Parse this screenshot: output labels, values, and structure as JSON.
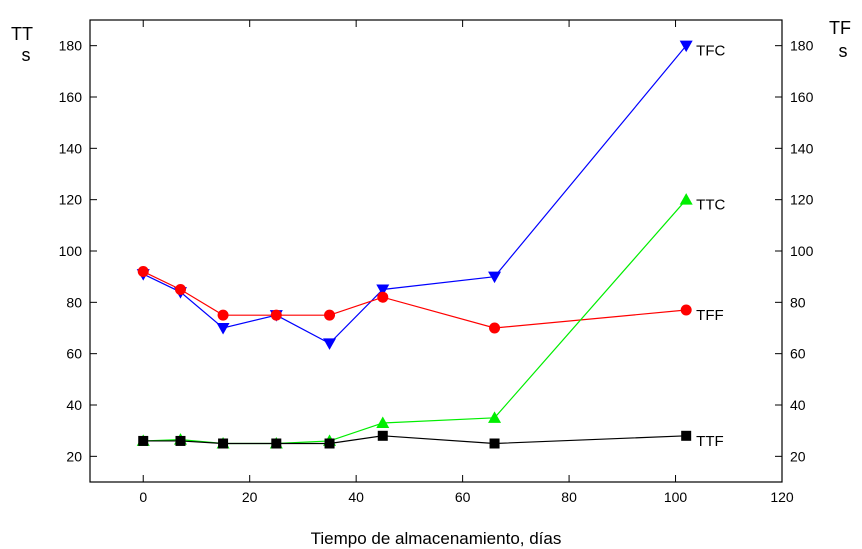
{
  "chart_data": {
    "type": "line",
    "xlabel": "Tiempo de almacenamiento, días",
    "ylabel_left": [
      "TT",
      "s"
    ],
    "ylabel_right": [
      "TF",
      "s"
    ],
    "xlim": [
      -10,
      120
    ],
    "ylim": [
      10,
      190
    ],
    "x_ticks": [
      0,
      20,
      40,
      60,
      80,
      100,
      120
    ],
    "y_ticks": [
      20,
      40,
      60,
      80,
      100,
      120,
      140,
      160,
      180
    ],
    "grid": false,
    "series": [
      {
        "name": "TFC",
        "color": "#0000ff",
        "marker": "triangle-down",
        "x": [
          0,
          7,
          15,
          25,
          35,
          45,
          66,
          102
        ],
        "y": [
          91,
          84,
          70,
          75,
          64,
          85,
          90,
          180
        ]
      },
      {
        "name": "TFF",
        "color": "#ff0000",
        "marker": "circle",
        "x": [
          0,
          7,
          15,
          25,
          35,
          45,
          66,
          102
        ],
        "y": [
          92,
          85,
          75,
          75,
          75,
          82,
          70,
          77
        ]
      },
      {
        "name": "TTC",
        "color": "#00ee00",
        "marker": "triangle-up",
        "x": [
          0,
          7,
          15,
          25,
          35,
          45,
          66,
          102
        ],
        "y": [
          26,
          26.5,
          25,
          25,
          26,
          33,
          35,
          120
        ]
      },
      {
        "name": "TTF",
        "color": "#000000",
        "marker": "square",
        "x": [
          0,
          7,
          15,
          25,
          35,
          45,
          66,
          102
        ],
        "y": [
          26,
          26,
          25,
          25,
          25,
          28,
          25,
          28
        ]
      }
    ]
  }
}
